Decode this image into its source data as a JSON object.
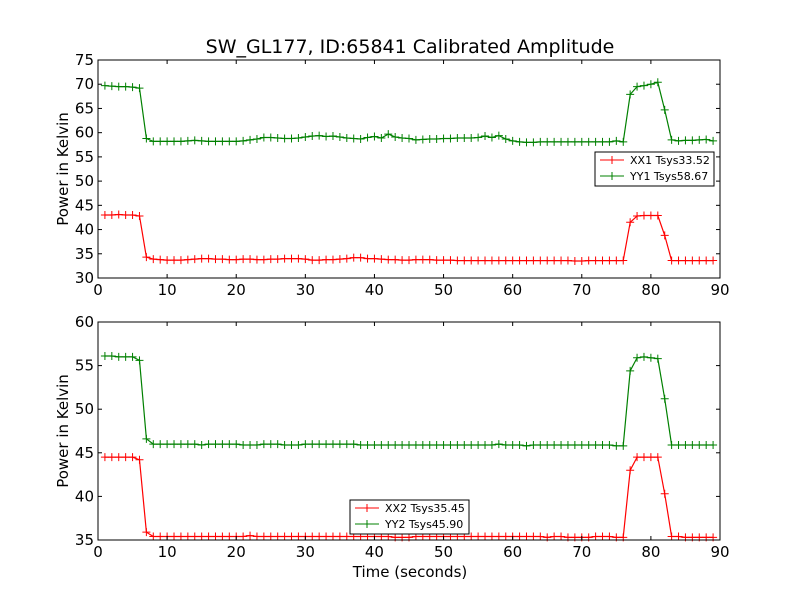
{
  "figure": {
    "title": "SW_GL177, ID:65841 Calibrated Amplitude"
  },
  "colors": {
    "xx": "#ff0000",
    "yy": "#008000",
    "axes": "#000000",
    "background": "#ffffff"
  },
  "chart_data": [
    {
      "type": "line",
      "title": "SW_GL177, ID:65841 Calibrated Amplitude",
      "xlabel": "",
      "ylabel": "Power in Kelvin",
      "xlim": [
        0,
        90
      ],
      "ylim": [
        30,
        75
      ],
      "xticks": [
        "0",
        "10",
        "20",
        "30",
        "40",
        "50",
        "60",
        "70",
        "80",
        "90"
      ],
      "yticks": [
        "30",
        "35",
        "40",
        "45",
        "50",
        "55",
        "60",
        "65",
        "70",
        "75"
      ],
      "grid": false,
      "legend_position": "center-right",
      "marker": "plus",
      "x": [
        1,
        2,
        3,
        4,
        5,
        6,
        7,
        8,
        9,
        10,
        11,
        12,
        13,
        14,
        15,
        16,
        17,
        18,
        19,
        20,
        21,
        22,
        23,
        24,
        25,
        26,
        27,
        28,
        29,
        30,
        31,
        32,
        33,
        34,
        35,
        36,
        37,
        38,
        39,
        40,
        41,
        42,
        43,
        44,
        45,
        46,
        47,
        48,
        49,
        50,
        51,
        52,
        53,
        54,
        55,
        56,
        57,
        58,
        59,
        60,
        61,
        62,
        63,
        64,
        65,
        66,
        67,
        68,
        69,
        70,
        71,
        72,
        73,
        74,
        75,
        76,
        77,
        78,
        79,
        80,
        81,
        82,
        83,
        84,
        85,
        86,
        87,
        88,
        89
      ],
      "series": [
        {
          "name": "XX1 Tsys33.52",
          "color": "#ff0000",
          "values": [
            43.0,
            43.0,
            43.1,
            43.0,
            43.0,
            42.8,
            34.3,
            33.9,
            33.8,
            33.7,
            33.7,
            33.7,
            33.8,
            33.9,
            34.0,
            34.0,
            33.9,
            33.9,
            33.8,
            33.8,
            33.9,
            33.9,
            33.8,
            33.8,
            33.9,
            33.9,
            34.0,
            34.0,
            34.0,
            33.9,
            33.7,
            33.7,
            33.8,
            33.8,
            33.9,
            34.0,
            34.2,
            34.2,
            34.0,
            34.0,
            33.9,
            33.8,
            33.8,
            33.7,
            33.7,
            33.8,
            33.8,
            33.8,
            33.7,
            33.7,
            33.7,
            33.6,
            33.6,
            33.6,
            33.6,
            33.6,
            33.6,
            33.6,
            33.6,
            33.6,
            33.6,
            33.6,
            33.6,
            33.6,
            33.6,
            33.6,
            33.6,
            33.6,
            33.5,
            33.5,
            33.6,
            33.6,
            33.6,
            33.6,
            33.6,
            33.6,
            41.5,
            42.8,
            42.9,
            42.9,
            42.9,
            38.8,
            33.6,
            33.6,
            33.6,
            33.6,
            33.6,
            33.6,
            33.6
          ]
        },
        {
          "name": "YY1 Tsys58.67",
          "color": "#008000",
          "values": [
            69.7,
            69.6,
            69.5,
            69.5,
            69.4,
            69.2,
            58.8,
            58.2,
            58.2,
            58.2,
            58.2,
            58.2,
            58.3,
            58.4,
            58.3,
            58.2,
            58.2,
            58.2,
            58.2,
            58.2,
            58.3,
            58.5,
            58.7,
            59.0,
            59.0,
            58.9,
            58.8,
            58.8,
            58.9,
            59.1,
            59.3,
            59.4,
            59.2,
            59.3,
            59.1,
            58.9,
            58.8,
            58.7,
            59.0,
            59.2,
            58.9,
            59.7,
            59.1,
            58.9,
            58.8,
            58.5,
            58.6,
            58.7,
            58.7,
            58.8,
            58.8,
            58.9,
            58.9,
            58.9,
            59.0,
            59.3,
            59.0,
            59.4,
            58.7,
            58.3,
            58.1,
            58.0,
            58.0,
            58.1,
            58.1,
            58.1,
            58.1,
            58.1,
            58.1,
            58.1,
            58.1,
            58.1,
            58.1,
            58.1,
            58.3,
            58.1,
            67.9,
            69.5,
            69.7,
            70.0,
            70.4,
            64.7,
            58.5,
            58.3,
            58.4,
            58.4,
            58.5,
            58.6,
            58.3
          ]
        }
      ]
    },
    {
      "type": "line",
      "title": "",
      "xlabel": "Time (seconds)",
      "ylabel": "Power in Kelvin",
      "xlim": [
        0,
        90
      ],
      "ylim": [
        35,
        60
      ],
      "xticks": [
        "0",
        "10",
        "20",
        "30",
        "40",
        "50",
        "60",
        "70",
        "80",
        "90"
      ],
      "yticks": [
        "35",
        "40",
        "45",
        "50",
        "55",
        "60"
      ],
      "grid": false,
      "legend_position": "bottom-center",
      "marker": "plus",
      "x": [
        1,
        2,
        3,
        4,
        5,
        6,
        7,
        8,
        9,
        10,
        11,
        12,
        13,
        14,
        15,
        16,
        17,
        18,
        19,
        20,
        21,
        22,
        23,
        24,
        25,
        26,
        27,
        28,
        29,
        30,
        31,
        32,
        33,
        34,
        35,
        36,
        37,
        38,
        39,
        40,
        41,
        42,
        43,
        44,
        45,
        46,
        47,
        48,
        49,
        50,
        51,
        52,
        53,
        54,
        55,
        56,
        57,
        58,
        59,
        60,
        61,
        62,
        63,
        64,
        65,
        66,
        67,
        68,
        69,
        70,
        71,
        72,
        73,
        74,
        75,
        76,
        77,
        78,
        79,
        80,
        81,
        82,
        83,
        84,
        85,
        86,
        87,
        88,
        89
      ],
      "series": [
        {
          "name": "XX2 Tsys35.45",
          "color": "#ff0000",
          "values": [
            44.5,
            44.5,
            44.5,
            44.5,
            44.5,
            44.2,
            35.9,
            35.4,
            35.4,
            35.4,
            35.4,
            35.4,
            35.4,
            35.4,
            35.4,
            35.4,
            35.4,
            35.4,
            35.4,
            35.4,
            35.4,
            35.5,
            35.4,
            35.4,
            35.4,
            35.4,
            35.4,
            35.4,
            35.4,
            35.4,
            35.4,
            35.4,
            35.4,
            35.4,
            35.4,
            35.4,
            35.4,
            35.4,
            35.4,
            35.4,
            35.4,
            35.4,
            35.3,
            35.3,
            35.3,
            35.4,
            35.4,
            35.4,
            35.4,
            35.4,
            35.4,
            35.4,
            35.4,
            35.4,
            35.4,
            35.4,
            35.4,
            35.4,
            35.4,
            35.4,
            35.4,
            35.4,
            35.4,
            35.4,
            35.3,
            35.4,
            35.4,
            35.3,
            35.3,
            35.3,
            35.3,
            35.4,
            35.4,
            35.4,
            35.3,
            35.3,
            43.0,
            44.5,
            44.5,
            44.5,
            44.5,
            40.3,
            35.4,
            35.4,
            35.3,
            35.3,
            35.3,
            35.3,
            35.3
          ]
        },
        {
          "name": "YY2 Tsys45.90",
          "color": "#008000",
          "values": [
            56.1,
            56.1,
            56.0,
            56.0,
            56.0,
            55.6,
            46.6,
            46.0,
            46.0,
            46.0,
            46.0,
            46.0,
            46.0,
            46.0,
            45.9,
            46.0,
            46.0,
            46.0,
            46.0,
            46.0,
            45.9,
            45.9,
            45.9,
            46.0,
            46.0,
            46.0,
            45.9,
            45.9,
            45.9,
            46.0,
            46.0,
            46.0,
            46.0,
            46.0,
            46.0,
            46.0,
            46.0,
            45.9,
            45.9,
            45.9,
            45.9,
            45.9,
            45.9,
            45.9,
            45.9,
            45.9,
            45.9,
            45.9,
            45.9,
            45.9,
            45.9,
            45.9,
            45.9,
            45.9,
            45.9,
            45.9,
            45.9,
            46.0,
            45.9,
            45.9,
            45.9,
            45.8,
            45.9,
            45.9,
            45.9,
            45.9,
            45.9,
            45.9,
            45.9,
            45.9,
            45.9,
            45.9,
            45.9,
            45.9,
            45.8,
            45.8,
            54.4,
            55.9,
            56.0,
            55.9,
            55.8,
            51.2,
            45.9,
            45.9,
            45.9,
            45.9,
            45.9,
            45.9,
            45.9
          ]
        }
      ]
    }
  ]
}
